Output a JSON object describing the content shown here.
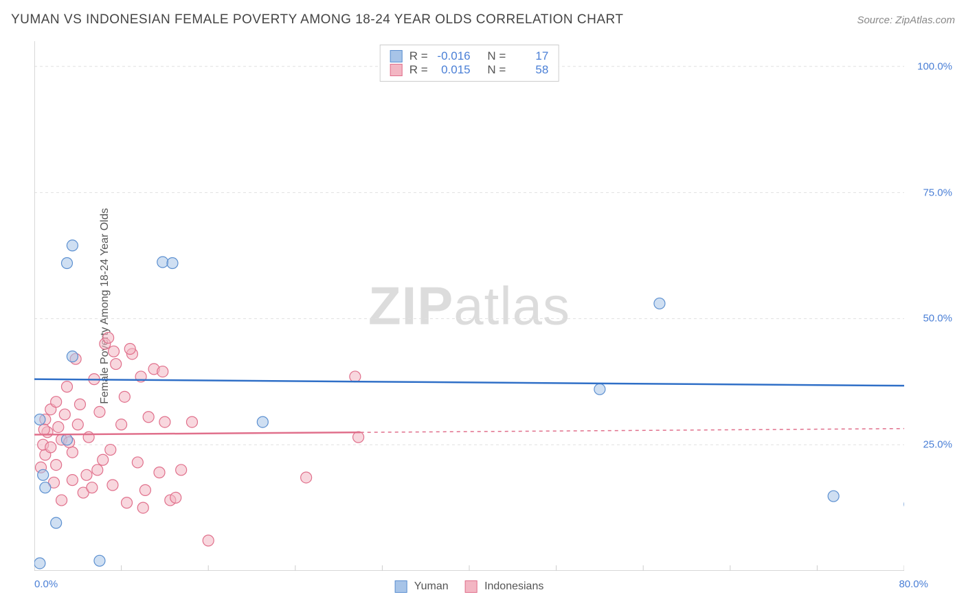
{
  "title": "YUMAN VS INDONESIAN FEMALE POVERTY AMONG 18-24 YEAR OLDS CORRELATION CHART",
  "source": "Source: ZipAtlas.com",
  "ylabel": "Female Poverty Among 18-24 Year Olds",
  "watermark_bold": "ZIP",
  "watermark_light": "atlas",
  "chart": {
    "type": "scatter",
    "xlim": [
      0,
      80
    ],
    "ylim": [
      0,
      105
    ],
    "x_tick_min": "0.0%",
    "x_tick_max": "80.0%",
    "y_ticks": [
      {
        "v": 25,
        "label": "25.0%"
      },
      {
        "v": 50,
        "label": "50.0%"
      },
      {
        "v": 75,
        "label": "75.0%"
      },
      {
        "v": 100,
        "label": "100.0%"
      }
    ],
    "x_minor_ticks": [
      8,
      16,
      24,
      32,
      40,
      48,
      56,
      64,
      72,
      80
    ],
    "grid_color": "#e0e0e0",
    "axis_color": "#cccccc",
    "background_color": "#ffffff",
    "marker_radius": 8,
    "marker_opacity": 0.55,
    "series": [
      {
        "name": "Yuman",
        "fill": "#a7c4e8",
        "stroke": "#5b8fd0",
        "trend_solid_to_x": 80,
        "trend": {
          "y_at_x0": 38.0,
          "y_at_x80": 36.7,
          "color": "#2f6fc7",
          "width": 2.5
        },
        "R_label": "R =",
        "R_value": "-0.016",
        "N_label": "N =",
        "N_value": "17",
        "points": [
          [
            0.5,
            1.5
          ],
          [
            2.0,
            9.5
          ],
          [
            1.0,
            16.5
          ],
          [
            3.5,
            64.5
          ],
          [
            3.0,
            61.0
          ],
          [
            11.8,
            61.2
          ],
          [
            12.7,
            61.0
          ],
          [
            3.5,
            42.5
          ],
          [
            0.5,
            30.0
          ],
          [
            3.0,
            26.0
          ],
          [
            21.0,
            29.5
          ],
          [
            52.0,
            36.0
          ],
          [
            57.5,
            53.0
          ],
          [
            73.5,
            14.8
          ],
          [
            80.5,
            13.2
          ],
          [
            6.0,
            2.0
          ],
          [
            0.8,
            19.0
          ]
        ]
      },
      {
        "name": "Indonesians",
        "fill": "#f3b6c3",
        "stroke": "#e06f8b",
        "trend_solid_to_x": 30,
        "trend": {
          "y_at_x0": 27.0,
          "y_at_x80": 28.2,
          "color": "#e06f8b",
          "width": 2.5
        },
        "R_label": "R =",
        "R_value": "0.015",
        "N_label": "N =",
        "N_value": "58",
        "points": [
          [
            1.0,
            23.0
          ],
          [
            0.8,
            25.0
          ],
          [
            1.2,
            27.5
          ],
          [
            1.0,
            30.0
          ],
          [
            1.5,
            32.0
          ],
          [
            2.0,
            21.0
          ],
          [
            2.5,
            26.0
          ],
          [
            2.2,
            28.5
          ],
          [
            2.8,
            31.0
          ],
          [
            3.0,
            36.5
          ],
          [
            3.5,
            23.5
          ],
          [
            3.5,
            18.0
          ],
          [
            4.0,
            29.0
          ],
          [
            4.2,
            33.0
          ],
          [
            4.5,
            15.5
          ],
          [
            5.0,
            26.5
          ],
          [
            5.5,
            38.0
          ],
          [
            5.8,
            20.0
          ],
          [
            6.0,
            31.5
          ],
          [
            6.5,
            45.0
          ],
          [
            7.0,
            24.0
          ],
          [
            7.2,
            17.0
          ],
          [
            7.5,
            41.0
          ],
          [
            8.0,
            29.0
          ],
          [
            8.3,
            34.5
          ],
          [
            8.5,
            13.5
          ],
          [
            9.0,
            43.0
          ],
          [
            9.5,
            21.5
          ],
          [
            9.8,
            38.5
          ],
          [
            10.2,
            16.0
          ],
          [
            10.5,
            30.5
          ],
          [
            11.0,
            40.0
          ],
          [
            11.5,
            19.5
          ],
          [
            12.0,
            29.5
          ],
          [
            12.5,
            14.0
          ],
          [
            6.8,
            46.2
          ],
          [
            7.3,
            43.5
          ],
          [
            8.8,
            44.0
          ],
          [
            3.8,
            42.0
          ],
          [
            10.0,
            12.5
          ],
          [
            11.8,
            39.5
          ],
          [
            14.5,
            29.5
          ],
          [
            13.0,
            14.5
          ],
          [
            16.0,
            6.0
          ],
          [
            25.0,
            18.5
          ],
          [
            29.5,
            38.5
          ],
          [
            29.8,
            26.5
          ],
          [
            13.5,
            20.0
          ],
          [
            4.8,
            19.0
          ],
          [
            2.5,
            14.0
          ],
          [
            1.8,
            17.5
          ],
          [
            0.6,
            20.5
          ],
          [
            0.9,
            28.0
          ],
          [
            1.5,
            24.5
          ],
          [
            2.0,
            33.5
          ],
          [
            3.2,
            25.5
          ],
          [
            5.3,
            16.5
          ],
          [
            6.3,
            22.0
          ]
        ]
      }
    ]
  }
}
